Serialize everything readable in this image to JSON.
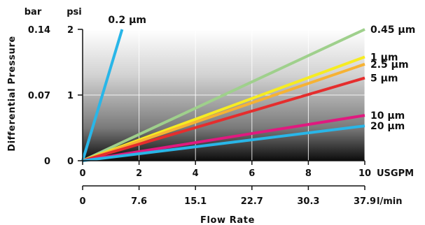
{
  "chart_data": {
    "type": "line",
    "title": "",
    "xlabel": "Flow Rate",
    "ylabel": "Differential Pressure",
    "xlim": [
      0,
      10
    ],
    "ylim": [
      0,
      2
    ],
    "x_primary": {
      "unit": "USGPM",
      "ticks": [
        0,
        2,
        4,
        6,
        8,
        10
      ],
      "tick_labels": [
        "0",
        "2",
        "4",
        "6",
        "8",
        "10"
      ]
    },
    "x_secondary": {
      "unit": "l/min",
      "tick_labels": [
        "0",
        "7.6",
        "15.1",
        "22.7",
        "30.3",
        "37.9"
      ]
    },
    "y_primary": {
      "unit": "psi",
      "ticks": [
        0,
        1,
        2
      ],
      "tick_labels": [
        "0",
        "1",
        "2"
      ]
    },
    "y_secondary": {
      "unit": "bar",
      "tick_labels": [
        "0",
        "0.07",
        "0.14"
      ]
    },
    "grid": true,
    "legend": "labels at line ends",
    "series": [
      {
        "name": "0.2 µm",
        "color": "#29b6e8",
        "x": [
          0,
          1.4
        ],
        "y": [
          0,
          2.0
        ]
      },
      {
        "name": "0.45 µm",
        "color": "#9fd08c",
        "x": [
          0,
          10
        ],
        "y": [
          0,
          2.0
        ]
      },
      {
        "name": "1 µm",
        "color": "#f6ec22",
        "x": [
          0,
          10
        ],
        "y": [
          0,
          1.58
        ]
      },
      {
        "name": "2.5 µm",
        "color": "#f6b234",
        "x": [
          0,
          10
        ],
        "y": [
          0,
          1.47
        ]
      },
      {
        "name": "5 µm",
        "color": "#e52d2d",
        "x": [
          0,
          10
        ],
        "y": [
          0,
          1.26
        ]
      },
      {
        "name": "10 µm",
        "color": "#e0197f",
        "x": [
          0,
          10
        ],
        "y": [
          0,
          0.69
        ]
      },
      {
        "name": "20 µm",
        "color": "#29b6e8",
        "x": [
          0,
          10
        ],
        "y": [
          0,
          0.53
        ]
      }
    ]
  }
}
